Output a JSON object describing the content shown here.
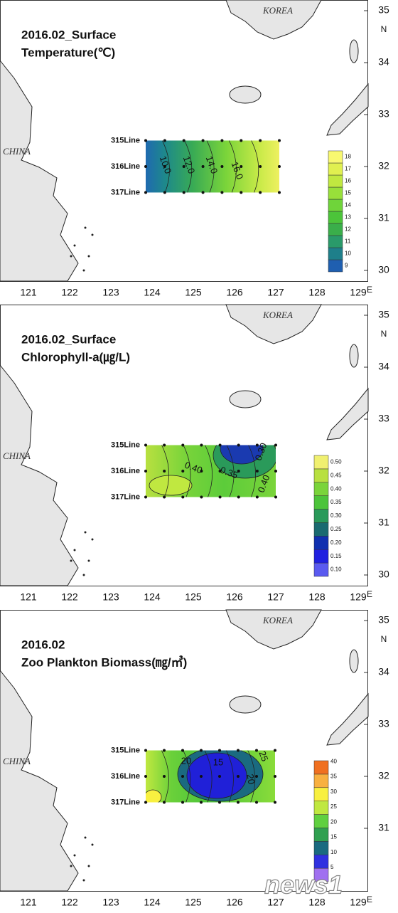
{
  "panels": [
    {
      "title": [
        "2016.02_Surface",
        "Temperature(℃)"
      ],
      "lines": [
        "315Line",
        "316Line",
        "317Line"
      ],
      "countries": [
        "KOREA",
        "CHINA"
      ],
      "lon_ticks": [
        121,
        122,
        123,
        124,
        125,
        126,
        127,
        128,
        129
      ],
      "lon_unit": "E",
      "lat_ticks": [
        30,
        31,
        32,
        33,
        34,
        35
      ],
      "lat_unit": "N",
      "colorbar": {
        "labels": [
          "9",
          "10",
          "11",
          "12",
          "13",
          "14",
          "15",
          "16",
          "17",
          "18"
        ],
        "colors": [
          "#1f5fb0",
          "#1e7f8a",
          "#2a9a6a",
          "#3aae4a",
          "#4cc43a",
          "#6fd43a",
          "#98e03a",
          "#c0e840",
          "#e0f050",
          "#f8f870"
        ]
      },
      "contour_labels": [
        "10.0",
        "12.0",
        "14.0",
        "16.0"
      ]
    },
    {
      "title": [
        "2016.02_Surface",
        "Chlorophyll-a(㎍/L)"
      ],
      "lines": [
        "315Line",
        "316Line",
        "317Line"
      ],
      "countries": [
        "KOREA",
        "CHINA"
      ],
      "lon_ticks": [
        121,
        122,
        123,
        124,
        125,
        126,
        127,
        128,
        129
      ],
      "lon_unit": "E",
      "lat_ticks": [
        30,
        31,
        32,
        33,
        34,
        35
      ],
      "lat_unit": "N",
      "colorbar": {
        "labels": [
          "0.10",
          "0.15",
          "0.20",
          "0.25",
          "0.30",
          "0.35",
          "0.40",
          "0.45",
          "0.50"
        ],
        "colors": [
          "#5a5af0",
          "#2020e0",
          "#1030b0",
          "#1a6a70",
          "#2a9a5a",
          "#4cc43a",
          "#7ad43a",
          "#b8e040",
          "#f0f070"
        ]
      },
      "contour_labels": [
        "0.40",
        "0.35",
        "0.30",
        "0.40"
      ]
    },
    {
      "title": [
        "2016.02",
        "Zoo Plankton Biomass(㎎/㎥)"
      ],
      "lines": [
        "315Line",
        "316Line",
        "317Line"
      ],
      "countries": [
        "KOREA",
        "CHINA"
      ],
      "lon_ticks": [
        121,
        122,
        123,
        124,
        125,
        126,
        127,
        128,
        129
      ],
      "lon_unit": "E",
      "lat_ticks": [
        31,
        32,
        33,
        34,
        35
      ],
      "lat_unit": "N",
      "colorbar": {
        "labels": [
          "5",
          "10",
          "15",
          "20",
          "25",
          "30",
          "35",
          "40"
        ],
        "colors": [
          "#a070f0",
          "#3030e0",
          "#1a6a80",
          "#30a050",
          "#60d040",
          "#c0e840",
          "#f8f040",
          "#f8b040",
          "#f07020"
        ]
      },
      "contour_labels": [
        "20",
        "15",
        "20",
        "25"
      ]
    }
  ],
  "watermark": "news1"
}
